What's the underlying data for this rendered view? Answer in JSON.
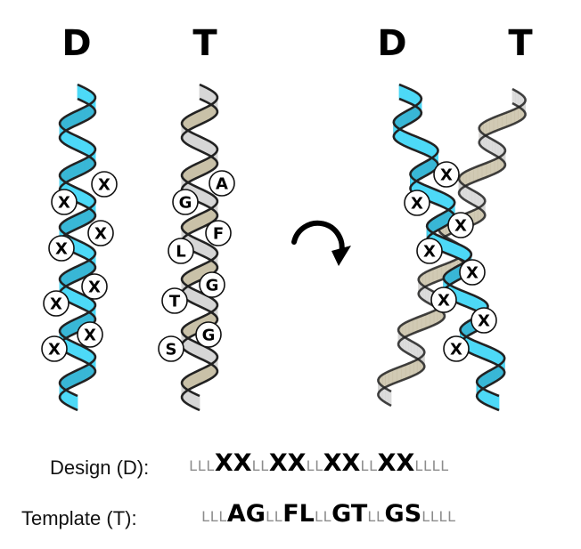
{
  "headers": {
    "left_design": "D",
    "left_template": "T",
    "right_design": "D",
    "right_template": "T"
  },
  "helix_design": {
    "color": "#4dd9f7",
    "residues": [
      "X",
      "X",
      "X",
      "X",
      "X",
      "X",
      "X",
      "X"
    ]
  },
  "helix_template": {
    "color": "#d6d6d6",
    "residues": [
      "A",
      "G",
      "F",
      "L",
      "G",
      "T",
      "G",
      "S"
    ]
  },
  "overlay_residues": [
    "X",
    "X",
    "X",
    "X",
    "X",
    "X",
    "X",
    "X"
  ],
  "rotation_icon": "clockwise-rotation-arrow-icon",
  "sequences": {
    "design": {
      "label": "Design (D):",
      "segments": [
        {
          "text": "LLL",
          "style": "l"
        },
        {
          "text": "XX",
          "style": "b"
        },
        {
          "text": "LL",
          "style": "l"
        },
        {
          "text": "XX",
          "style": "b"
        },
        {
          "text": "LL",
          "style": "l"
        },
        {
          "text": "XX",
          "style": "b"
        },
        {
          "text": "LL",
          "style": "l"
        },
        {
          "text": "XX",
          "style": "b"
        },
        {
          "text": "LLLL",
          "style": "l"
        }
      ]
    },
    "template": {
      "label": "Template (T):",
      "segments": [
        {
          "text": "LLL",
          "style": "l"
        },
        {
          "text": "AG",
          "style": "b"
        },
        {
          "text": "LL",
          "style": "l"
        },
        {
          "text": "FL",
          "style": "b"
        },
        {
          "text": "LL",
          "style": "l"
        },
        {
          "text": "GT",
          "style": "b"
        },
        {
          "text": "LL",
          "style": "l"
        },
        {
          "text": "GS",
          "style": "b"
        },
        {
          "text": "LLLL",
          "style": "l"
        }
      ]
    }
  }
}
